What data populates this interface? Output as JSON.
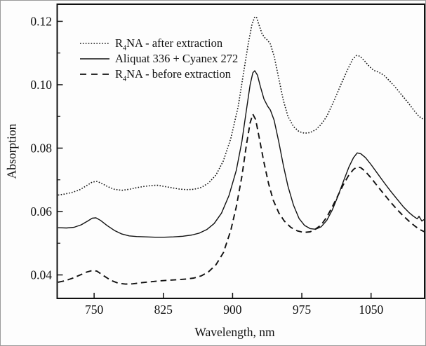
{
  "figure": {
    "background": "#fdfdfd",
    "line_color": "#111111"
  },
  "chart_data": {
    "type": "line",
    "title": "",
    "xlabel": "Wavelength, nm",
    "ylabel": "Absorption",
    "xlim": [
      710,
      1108
    ],
    "ylim": [
      0.0326,
      0.1254
    ],
    "x_ticks": [
      750,
      825,
      900,
      975,
      1050
    ],
    "x_tick_labels": [
      "750",
      "825",
      "900",
      "975",
      "1050"
    ],
    "y_ticks": [
      0.04,
      0.06,
      0.08,
      0.1,
      0.12
    ],
    "y_tick_labels": [
      "0.04",
      "0.06",
      "0.08",
      "0.10",
      "0.12"
    ],
    "y_minor_ticks": [
      0.05,
      0.07,
      0.09,
      0.11
    ],
    "grid": false,
    "legend_position": "upper-left-inside",
    "series": [
      {
        "name": "R4NA - after extraction",
        "label_parts": {
          "pre": "R",
          "sub": "4",
          "post": "NA - after extraction"
        },
        "style": "dotted",
        "points": [
          [
            711,
            0.0652
          ],
          [
            718,
            0.0655
          ],
          [
            726,
            0.066
          ],
          [
            734,
            0.0668
          ],
          [
            742,
            0.0682
          ],
          [
            748,
            0.0693
          ],
          [
            753,
            0.0695
          ],
          [
            758,
            0.0689
          ],
          [
            765,
            0.0678
          ],
          [
            772,
            0.067
          ],
          [
            780,
            0.0667
          ],
          [
            788,
            0.067
          ],
          [
            796,
            0.0675
          ],
          [
            804,
            0.0679
          ],
          [
            812,
            0.0682
          ],
          [
            818,
            0.0683
          ],
          [
            826,
            0.0679
          ],
          [
            834,
            0.0675
          ],
          [
            842,
            0.0671
          ],
          [
            850,
            0.0669
          ],
          [
            858,
            0.067
          ],
          [
            866,
            0.0676
          ],
          [
            874,
            0.069
          ],
          [
            882,
            0.0715
          ],
          [
            890,
            0.076
          ],
          [
            898,
            0.083
          ],
          [
            906,
            0.093
          ],
          [
            912,
            0.104
          ],
          [
            917,
            0.113
          ],
          [
            921,
            0.119
          ],
          [
            924,
            0.1214
          ],
          [
            926,
            0.1212
          ],
          [
            929,
            0.1185
          ],
          [
            932,
            0.116
          ],
          [
            935,
            0.1148
          ],
          [
            938,
            0.114
          ],
          [
            941,
            0.1128
          ],
          [
            945,
            0.109
          ],
          [
            950,
            0.102
          ],
          [
            955,
            0.095
          ],
          [
            960,
            0.09
          ],
          [
            966,
            0.0868
          ],
          [
            972,
            0.0852
          ],
          [
            978,
            0.0847
          ],
          [
            984,
            0.0849
          ],
          [
            990,
            0.0858
          ],
          [
            996,
            0.0875
          ],
          [
            1002,
            0.09
          ],
          [
            1010,
            0.095
          ],
          [
            1018,
            0.1005
          ],
          [
            1025,
            0.105
          ],
          [
            1030,
            0.108
          ],
          [
            1034,
            0.1092
          ],
          [
            1038,
            0.109
          ],
          [
            1043,
            0.1075
          ],
          [
            1048,
            0.1058
          ],
          [
            1053,
            0.1045
          ],
          [
            1058,
            0.104
          ],
          [
            1064,
            0.103
          ],
          [
            1070,
            0.1012
          ],
          [
            1077,
            0.099
          ],
          [
            1084,
            0.0965
          ],
          [
            1091,
            0.094
          ],
          [
            1097,
            0.0917
          ],
          [
            1102,
            0.09
          ],
          [
            1108,
            0.0888
          ]
        ]
      },
      {
        "name": "Aliquat 336 + Cyanex 272",
        "label_parts": {
          "pre": "Aliquat 336 + Cyanex 272",
          "sub": "",
          "post": ""
        },
        "style": "solid",
        "points": [
          [
            711,
            0.0549
          ],
          [
            720,
            0.0548
          ],
          [
            728,
            0.055
          ],
          [
            736,
            0.0558
          ],
          [
            743,
            0.057
          ],
          [
            748,
            0.0579
          ],
          [
            752,
            0.058
          ],
          [
            757,
            0.0572
          ],
          [
            764,
            0.0556
          ],
          [
            772,
            0.054
          ],
          [
            780,
            0.0529
          ],
          [
            788,
            0.0523
          ],
          [
            796,
            0.0521
          ],
          [
            806,
            0.052
          ],
          [
            816,
            0.0519
          ],
          [
            826,
            0.0519
          ],
          [
            836,
            0.052
          ],
          [
            846,
            0.0522
          ],
          [
            856,
            0.0526
          ],
          [
            864,
            0.0532
          ],
          [
            872,
            0.0543
          ],
          [
            880,
            0.0562
          ],
          [
            888,
            0.0595
          ],
          [
            896,
            0.065
          ],
          [
            904,
            0.073
          ],
          [
            910,
            0.082
          ],
          [
            915,
            0.092
          ],
          [
            919,
            0.1
          ],
          [
            922,
            0.1038
          ],
          [
            924,
            0.1044
          ],
          [
            927,
            0.103
          ],
          [
            930,
            0.0995
          ],
          [
            934,
            0.0955
          ],
          [
            938,
            0.0932
          ],
          [
            941,
            0.092
          ],
          [
            945,
            0.0888
          ],
          [
            950,
            0.082
          ],
          [
            955,
            0.0745
          ],
          [
            960,
            0.068
          ],
          [
            966,
            0.062
          ],
          [
            972,
            0.0578
          ],
          [
            978,
            0.0556
          ],
          [
            984,
            0.0546
          ],
          [
            990,
            0.0544
          ],
          [
            996,
            0.0552
          ],
          [
            1002,
            0.0572
          ],
          [
            1008,
            0.0605
          ],
          [
            1014,
            0.0648
          ],
          [
            1020,
            0.0695
          ],
          [
            1026,
            0.074
          ],
          [
            1031,
            0.077
          ],
          [
            1035,
            0.0785
          ],
          [
            1039,
            0.0782
          ],
          [
            1044,
            0.077
          ],
          [
            1050,
            0.0748
          ],
          [
            1057,
            0.072
          ],
          [
            1064,
            0.0692
          ],
          [
            1071,
            0.0665
          ],
          [
            1078,
            0.064
          ],
          [
            1085,
            0.0615
          ],
          [
            1091,
            0.0597
          ],
          [
            1096,
            0.0585
          ],
          [
            1100,
            0.0577
          ],
          [
            1102,
            0.0585
          ],
          [
            1105,
            0.057
          ],
          [
            1108,
            0.0576
          ]
        ]
      },
      {
        "name": "R4NA - before extraction",
        "label_parts": {
          "pre": "R",
          "sub": "4",
          "post": "NA - before extraction"
        },
        "style": "dashed",
        "points": [
          [
            711,
            0.0377
          ],
          [
            719,
            0.0382
          ],
          [
            727,
            0.039
          ],
          [
            735,
            0.04
          ],
          [
            742,
            0.0409
          ],
          [
            748,
            0.0414
          ],
          [
            753,
            0.0412
          ],
          [
            760,
            0.0398
          ],
          [
            768,
            0.0383
          ],
          [
            776,
            0.0374
          ],
          [
            784,
            0.0371
          ],
          [
            792,
            0.0372
          ],
          [
            800,
            0.0375
          ],
          [
            810,
            0.0378
          ],
          [
            820,
            0.0381
          ],
          [
            830,
            0.0383
          ],
          [
            840,
            0.0385
          ],
          [
            850,
            0.0387
          ],
          [
            858,
            0.039
          ],
          [
            866,
            0.0397
          ],
          [
            874,
            0.041
          ],
          [
            882,
            0.0432
          ],
          [
            890,
            0.047
          ],
          [
            898,
            0.054
          ],
          [
            904,
            0.0615
          ],
          [
            910,
            0.071
          ],
          [
            915,
            0.081
          ],
          [
            919,
            0.088
          ],
          [
            922,
            0.0907
          ],
          [
            925,
            0.089
          ],
          [
            929,
            0.083
          ],
          [
            934,
            0.0755
          ],
          [
            939,
            0.0688
          ],
          [
            944,
            0.0636
          ],
          [
            950,
            0.0596
          ],
          [
            956,
            0.057
          ],
          [
            963,
            0.055
          ],
          [
            970,
            0.0539
          ],
          [
            977,
            0.0534
          ],
          [
            984,
            0.0536
          ],
          [
            990,
            0.0545
          ],
          [
            996,
            0.0558
          ],
          [
            1002,
            0.0582
          ],
          [
            1008,
            0.0615
          ],
          [
            1014,
            0.065
          ],
          [
            1020,
            0.0685
          ],
          [
            1026,
            0.0715
          ],
          [
            1031,
            0.0733
          ],
          [
            1035,
            0.0741
          ],
          [
            1039,
            0.0738
          ],
          [
            1044,
            0.0726
          ],
          [
            1050,
            0.0706
          ],
          [
            1057,
            0.068
          ],
          [
            1064,
            0.0655
          ],
          [
            1071,
            0.063
          ],
          [
            1078,
            0.0607
          ],
          [
            1085,
            0.0586
          ],
          [
            1092,
            0.0567
          ],
          [
            1098,
            0.0553
          ],
          [
            1103,
            0.0543
          ],
          [
            1108,
            0.0536
          ]
        ]
      }
    ]
  }
}
